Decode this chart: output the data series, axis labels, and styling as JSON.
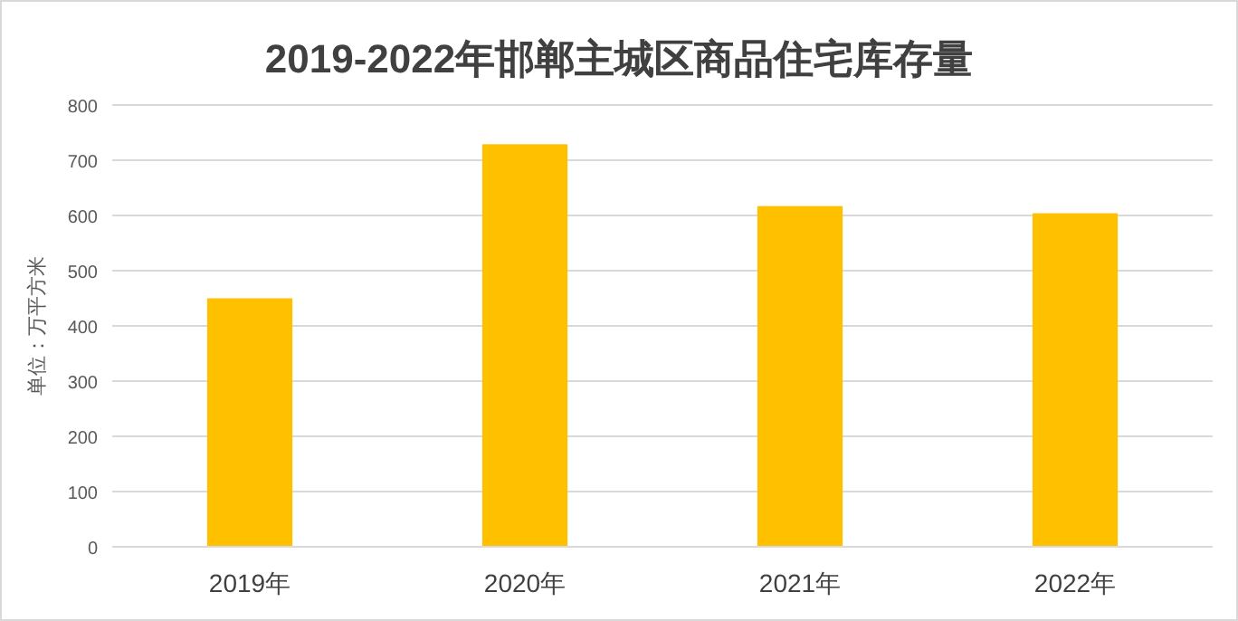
{
  "chart_data": {
    "type": "bar",
    "title": "2019-2022年邯郸主城区商品住宅库存量",
    "ylabel": "单位：万平方米",
    "categories": [
      "2019年",
      "2020年",
      "2021年",
      "2022年"
    ],
    "values": [
      450,
      729,
      617,
      604
    ],
    "color": "#ffc000",
    "ylim": [
      0,
      800
    ],
    "yticks": [
      0,
      100,
      200,
      300,
      400,
      500,
      600,
      700,
      800
    ],
    "grid": "y"
  }
}
